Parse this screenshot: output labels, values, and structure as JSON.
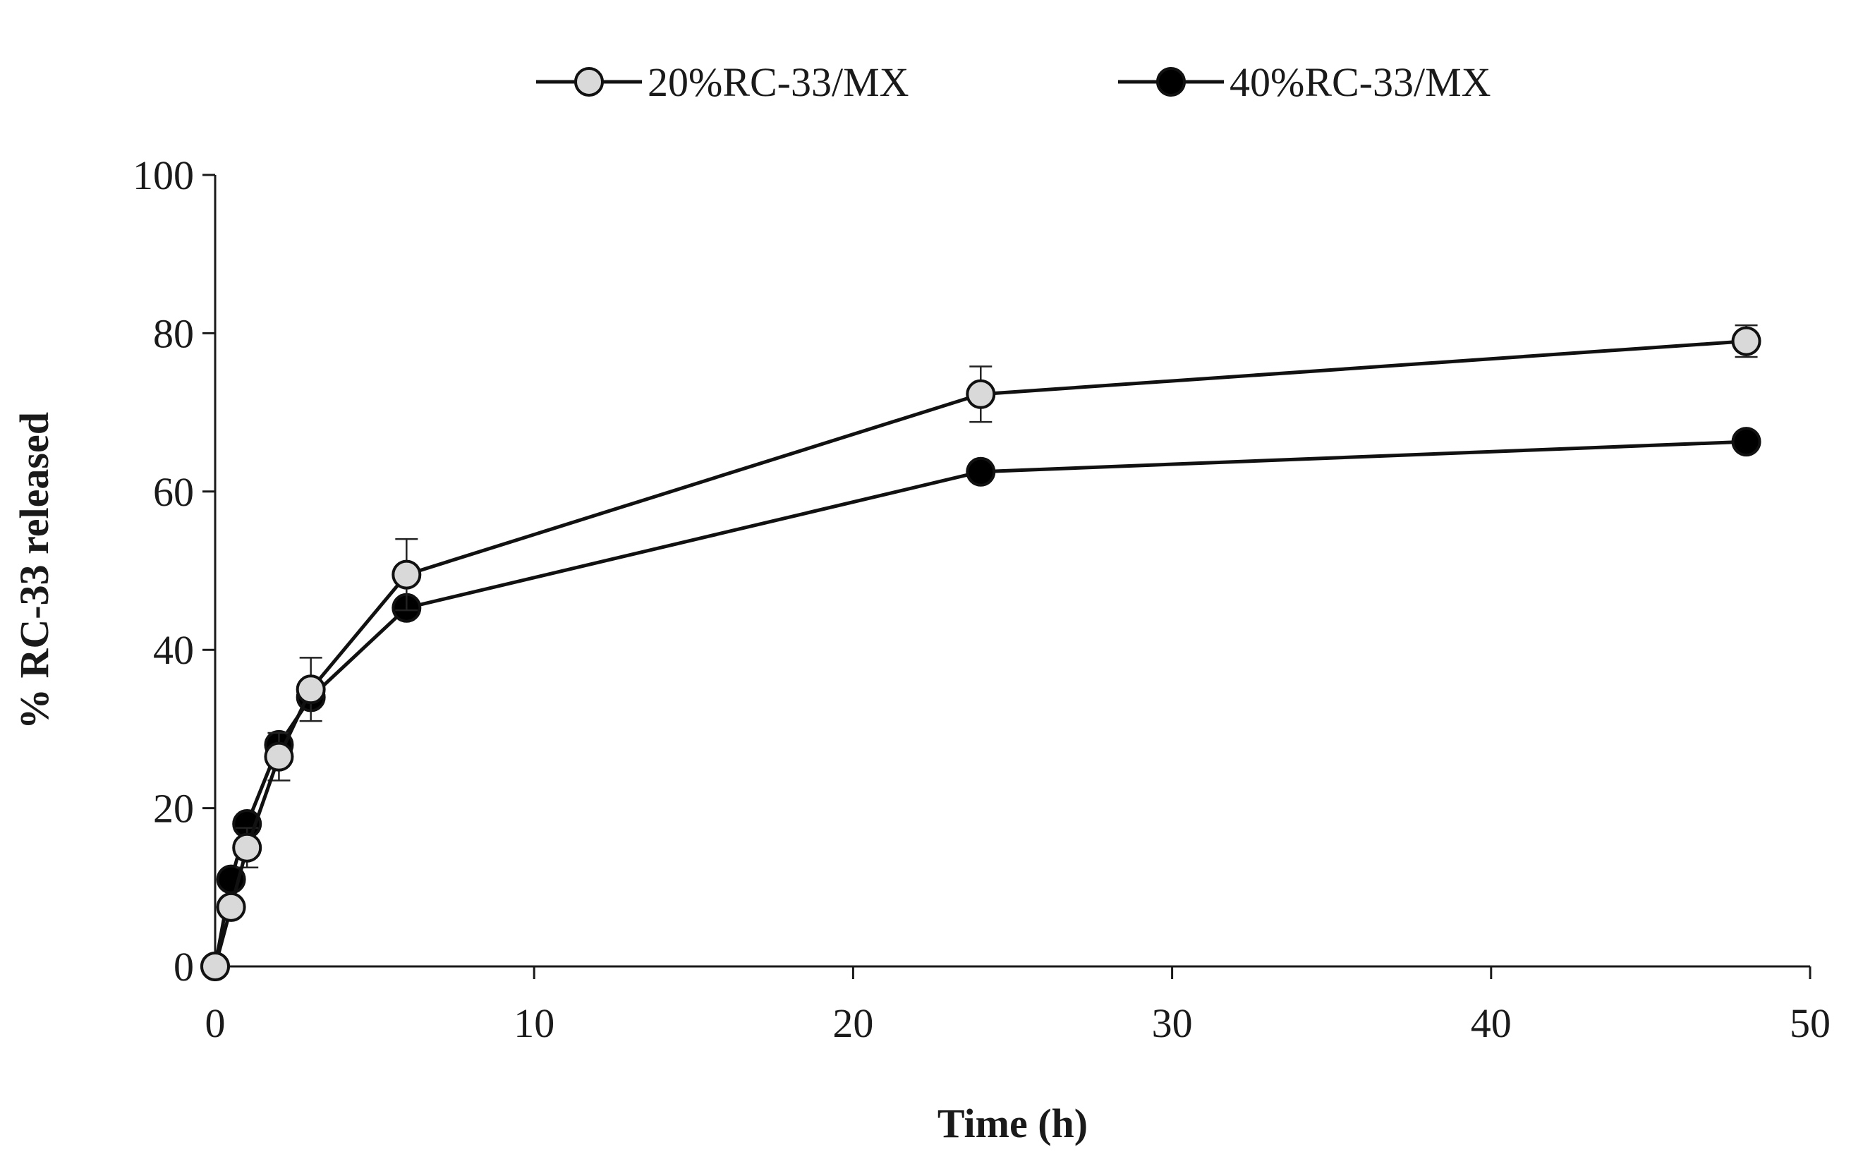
{
  "chart_data": {
    "type": "line",
    "title": "",
    "xlabel": "Time (h)",
    "ylabel": "% RC-33 released",
    "xlim": [
      0,
      50
    ],
    "ylim": [
      0,
      100
    ],
    "xticks": [
      0,
      10,
      20,
      30,
      40,
      50
    ],
    "yticks": [
      0,
      20,
      40,
      60,
      80,
      100
    ],
    "grid": false,
    "legend_position": "top",
    "series": [
      {
        "name": "20%RC-33/MX",
        "marker_fill": "#d9d9d9",
        "x": [
          0,
          0.5,
          1,
          2,
          3,
          6,
          24,
          48
        ],
        "values": [
          0,
          7.5,
          15,
          26.5,
          35,
          49.5,
          72.3,
          79
        ],
        "errors": [
          0,
          0.8,
          2.5,
          3,
          4,
          4.5,
          3.5,
          2
        ]
      },
      {
        "name": "40%RC-33/MX",
        "marker_fill": "#000000",
        "x": [
          0,
          0.5,
          1,
          2,
          3,
          6,
          24,
          48
        ],
        "values": [
          0,
          11,
          18,
          28,
          34,
          45.3,
          62.5,
          66.3
        ],
        "errors": [
          0,
          0.5,
          0.5,
          0.5,
          0.5,
          0.5,
          0.5,
          0.5
        ]
      }
    ]
  }
}
